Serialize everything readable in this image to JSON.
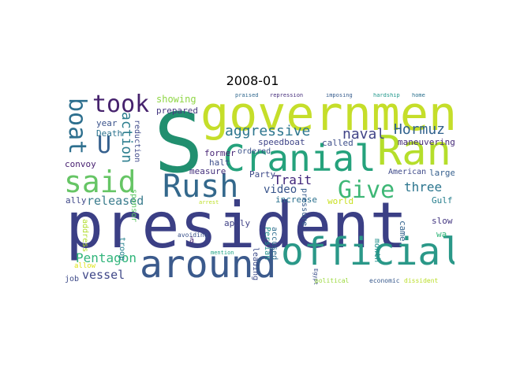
{
  "chart_data": {
    "type": "wordcloud",
    "title": "2008-01",
    "words": [
      {
        "text": "president",
        "color": "#3b3f85"
      },
      {
        "text": "S",
        "color": "#218f6f"
      },
      {
        "text": "government",
        "color": "#c5de2a"
      },
      {
        "text": "official",
        "color": "#2a9888"
      },
      {
        "text": "around",
        "color": "#3b5a8c"
      },
      {
        "text": "Cranial",
        "color": "#25a27c"
      },
      {
        "text": "Ran",
        "color": "#b5de2b"
      },
      {
        "text": "Rush",
        "color": "#33688c"
      },
      {
        "text": "said",
        "color": "#66c565"
      },
      {
        "text": "took",
        "color": "#46226d"
      },
      {
        "text": "Give",
        "color": "#3eb776"
      },
      {
        "text": "U",
        "color": "#35608d"
      },
      {
        "text": "boat",
        "color": "#2d6f8e"
      },
      {
        "text": "aggressive",
        "color": "#2d768e"
      },
      {
        "text": "Hormuz",
        "color": "#31628d"
      },
      {
        "text": "naval",
        "color": "#414487"
      },
      {
        "text": "action",
        "color": "#2c7e8e"
      },
      {
        "text": "Pentagon",
        "color": "#31b57b"
      },
      {
        "text": "three",
        "color": "#2b758e"
      },
      {
        "text": "released",
        "color": "#3c7d8e"
      },
      {
        "text": "Trait",
        "color": "#40247a"
      },
      {
        "text": "video",
        "color": "#39558c"
      },
      {
        "text": "vessel",
        "color": "#3f4788"
      },
      {
        "text": "showing",
        "color": "#8fd645"
      },
      {
        "text": "prepared",
        "color": "#453781"
      },
      {
        "text": "speedboat",
        "color": "#404688"
      },
      {
        "text": "maneuvering",
        "color": "#472c7a"
      },
      {
        "text": "called",
        "color": "#3d4e8a"
      },
      {
        "text": "Death",
        "color": "#2c738e"
      },
      {
        "text": "year",
        "color": "#3a538b"
      },
      {
        "text": "former",
        "color": "#482576"
      },
      {
        "text": "reduction",
        "color": "#3f4a8a"
      },
      {
        "text": "halt",
        "color": "#3d4e8a"
      },
      {
        "text": "measure",
        "color": "#46327e"
      },
      {
        "text": "ordered",
        "color": "#3b528b"
      },
      {
        "text": "Party",
        "color": "#3e4989"
      },
      {
        "text": "world",
        "color": "#c8e020"
      },
      {
        "text": "American",
        "color": "#3e4a89"
      },
      {
        "text": "large",
        "color": "#355f8d"
      },
      {
        "text": "Gulf",
        "color": "#277f8e"
      },
      {
        "text": "slow",
        "color": "#453882"
      },
      {
        "text": "wa",
        "color": "#32b67a"
      },
      {
        "text": "terrorist",
        "color": "#d8e219"
      },
      {
        "text": "convoy",
        "color": "#482071"
      },
      {
        "text": "ally",
        "color": "#3f4889"
      },
      {
        "text": "sponsor",
        "color": "#5cc863"
      },
      {
        "text": "troop",
        "color": "#26828e"
      },
      {
        "text": "address",
        "color": "#b2dd2d"
      },
      {
        "text": "allow",
        "color": "#dde318"
      },
      {
        "text": "arrest",
        "color": "#bddf26"
      },
      {
        "text": "apply",
        "color": "#414287"
      },
      {
        "text": "avoiding",
        "color": "#3b528b"
      },
      {
        "text": "increase",
        "color": "#2c728e"
      },
      {
        "text": "pressure",
        "color": "#365d8d"
      },
      {
        "text": "Persian",
        "color": "#21918c"
      },
      {
        "text": "accused",
        "color": "#2f6c8e"
      },
      {
        "text": "leading",
        "color": "#3e4c8a"
      },
      {
        "text": "mention",
        "color": "#20a486"
      },
      {
        "text": "month",
        "color": "#21918c"
      },
      {
        "text": "came",
        "color": "#33638d"
      },
      {
        "text": "job",
        "color": "#3e4a89"
      },
      {
        "text": "â",
        "color": "#482878"
      },
      {
        "text": "Egypt",
        "color": "#3c508b"
      },
      {
        "text": "political",
        "color": "#9bd93c"
      },
      {
        "text": "economic",
        "color": "#38598c"
      },
      {
        "text": "dissident",
        "color": "#bade28"
      },
      {
        "text": "praised",
        "color": "#31688e"
      },
      {
        "text": "repression",
        "color": "#472f7d"
      },
      {
        "text": "imposing",
        "color": "#365c8d"
      },
      {
        "text": "hardship",
        "color": "#1f978b"
      },
      {
        "text": "home",
        "color": "#2c718e"
      }
    ]
  }
}
